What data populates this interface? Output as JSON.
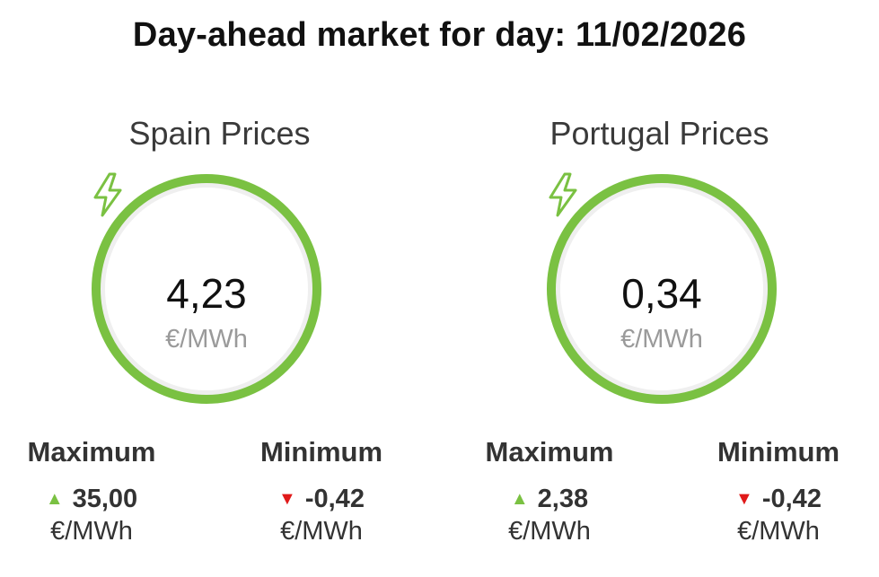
{
  "header": {
    "title": "Day-ahead market for day: 11/02/2026"
  },
  "colors": {
    "ring": "#7ac142",
    "ring_bg": "#efefef",
    "up_arrow": "#7ac142",
    "down_arrow": "#e01919"
  },
  "spain": {
    "title": "Spain Prices",
    "price": "4,23",
    "unit": "€/MWh",
    "icon": "lightning-bolt-icon",
    "maximum": {
      "label": "Maximum",
      "value": "35,00",
      "unit": "€/MWh",
      "icon": "triangle-up-icon"
    },
    "minimum": {
      "label": "Minimum",
      "value": "-0,42",
      "unit": "€/MWh",
      "icon": "triangle-down-icon"
    }
  },
  "portugal": {
    "title": "Portugal Prices",
    "price": "0,34",
    "unit": "€/MWh",
    "icon": "lightning-bolt-icon",
    "maximum": {
      "label": "Maximum",
      "value": "2,38",
      "unit": "€/MWh",
      "icon": "triangle-up-icon"
    },
    "minimum": {
      "label": "Minimum",
      "value": "-0,42",
      "unit": "€/MWh",
      "icon": "triangle-down-icon"
    }
  }
}
